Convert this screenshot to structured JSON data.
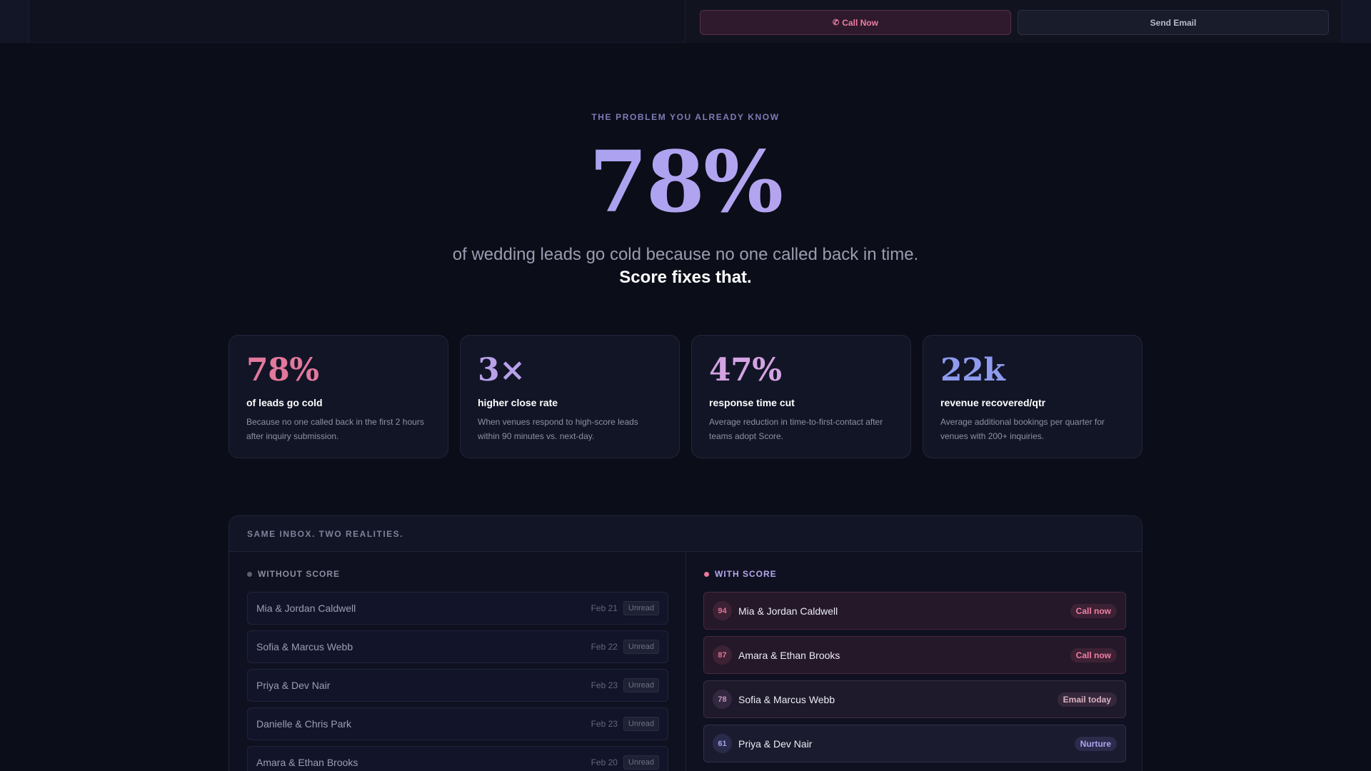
{
  "topbar": {
    "call_icon": "phone-icon",
    "call_label": "Call Now",
    "email_label": "Send Email"
  },
  "hero": {
    "eyebrow": "THE PROBLEM YOU ALREADY KNOW",
    "big_stat": "78%",
    "subtitle": "of wedding leads go cold because no one called back in time.",
    "strong": "Score fixes that."
  },
  "stats": [
    {
      "value": "78%",
      "label": "of leads go cold",
      "desc": "Because no one called back in the first 2 hours after inquiry submission.",
      "color": "#e2789c"
    },
    {
      "value": "3×",
      "label": "higher close rate",
      "desc": "When venues respond to high-score leads within 90 minutes vs. next-day.",
      "color": "#b8a1ea"
    },
    {
      "value": "47%",
      "label": "response time cut",
      "desc": "Average reduction in time-to-first-contact after teams adopt Score.",
      "color": "#d4a3e2"
    },
    {
      "value": "22k",
      "label": "revenue recovered/qtr",
      "desc": "Average additional bookings per quarter for venues with 200+ inquiries.",
      "color": "#8e9bee"
    }
  ],
  "comparison": {
    "heading": "SAME INBOX. TWO REALITIES.",
    "without": {
      "title": "WITHOUT SCORE",
      "rows": [
        {
          "name": "Mia & Jordan Caldwell",
          "date": "Feb 21",
          "status": "Unread"
        },
        {
          "name": "Sofia & Marcus Webb",
          "date": "Feb 22",
          "status": "Unread"
        },
        {
          "name": "Priya & Dev Nair",
          "date": "Feb 23",
          "status": "Unread"
        },
        {
          "name": "Danielle & Chris Park",
          "date": "Feb 23",
          "status": "Unread"
        },
        {
          "name": "Amara & Ethan Brooks",
          "date": "Feb 20",
          "status": "Unread"
        }
      ]
    },
    "with": {
      "title": "WITH SCORE",
      "rows": [
        {
          "score": "94",
          "name": "Mia & Jordan Caldwell",
          "action": "Call now",
          "tier": "hot"
        },
        {
          "score": "87",
          "name": "Amara & Ethan Brooks",
          "action": "Call now",
          "tier": "hot"
        },
        {
          "score": "78",
          "name": "Sofia & Marcus Webb",
          "action": "Email today",
          "tier": "warm"
        },
        {
          "score": "61",
          "name": "Priya & Dev Nair",
          "action": "Nurture",
          "tier": "cool"
        }
      ]
    }
  }
}
